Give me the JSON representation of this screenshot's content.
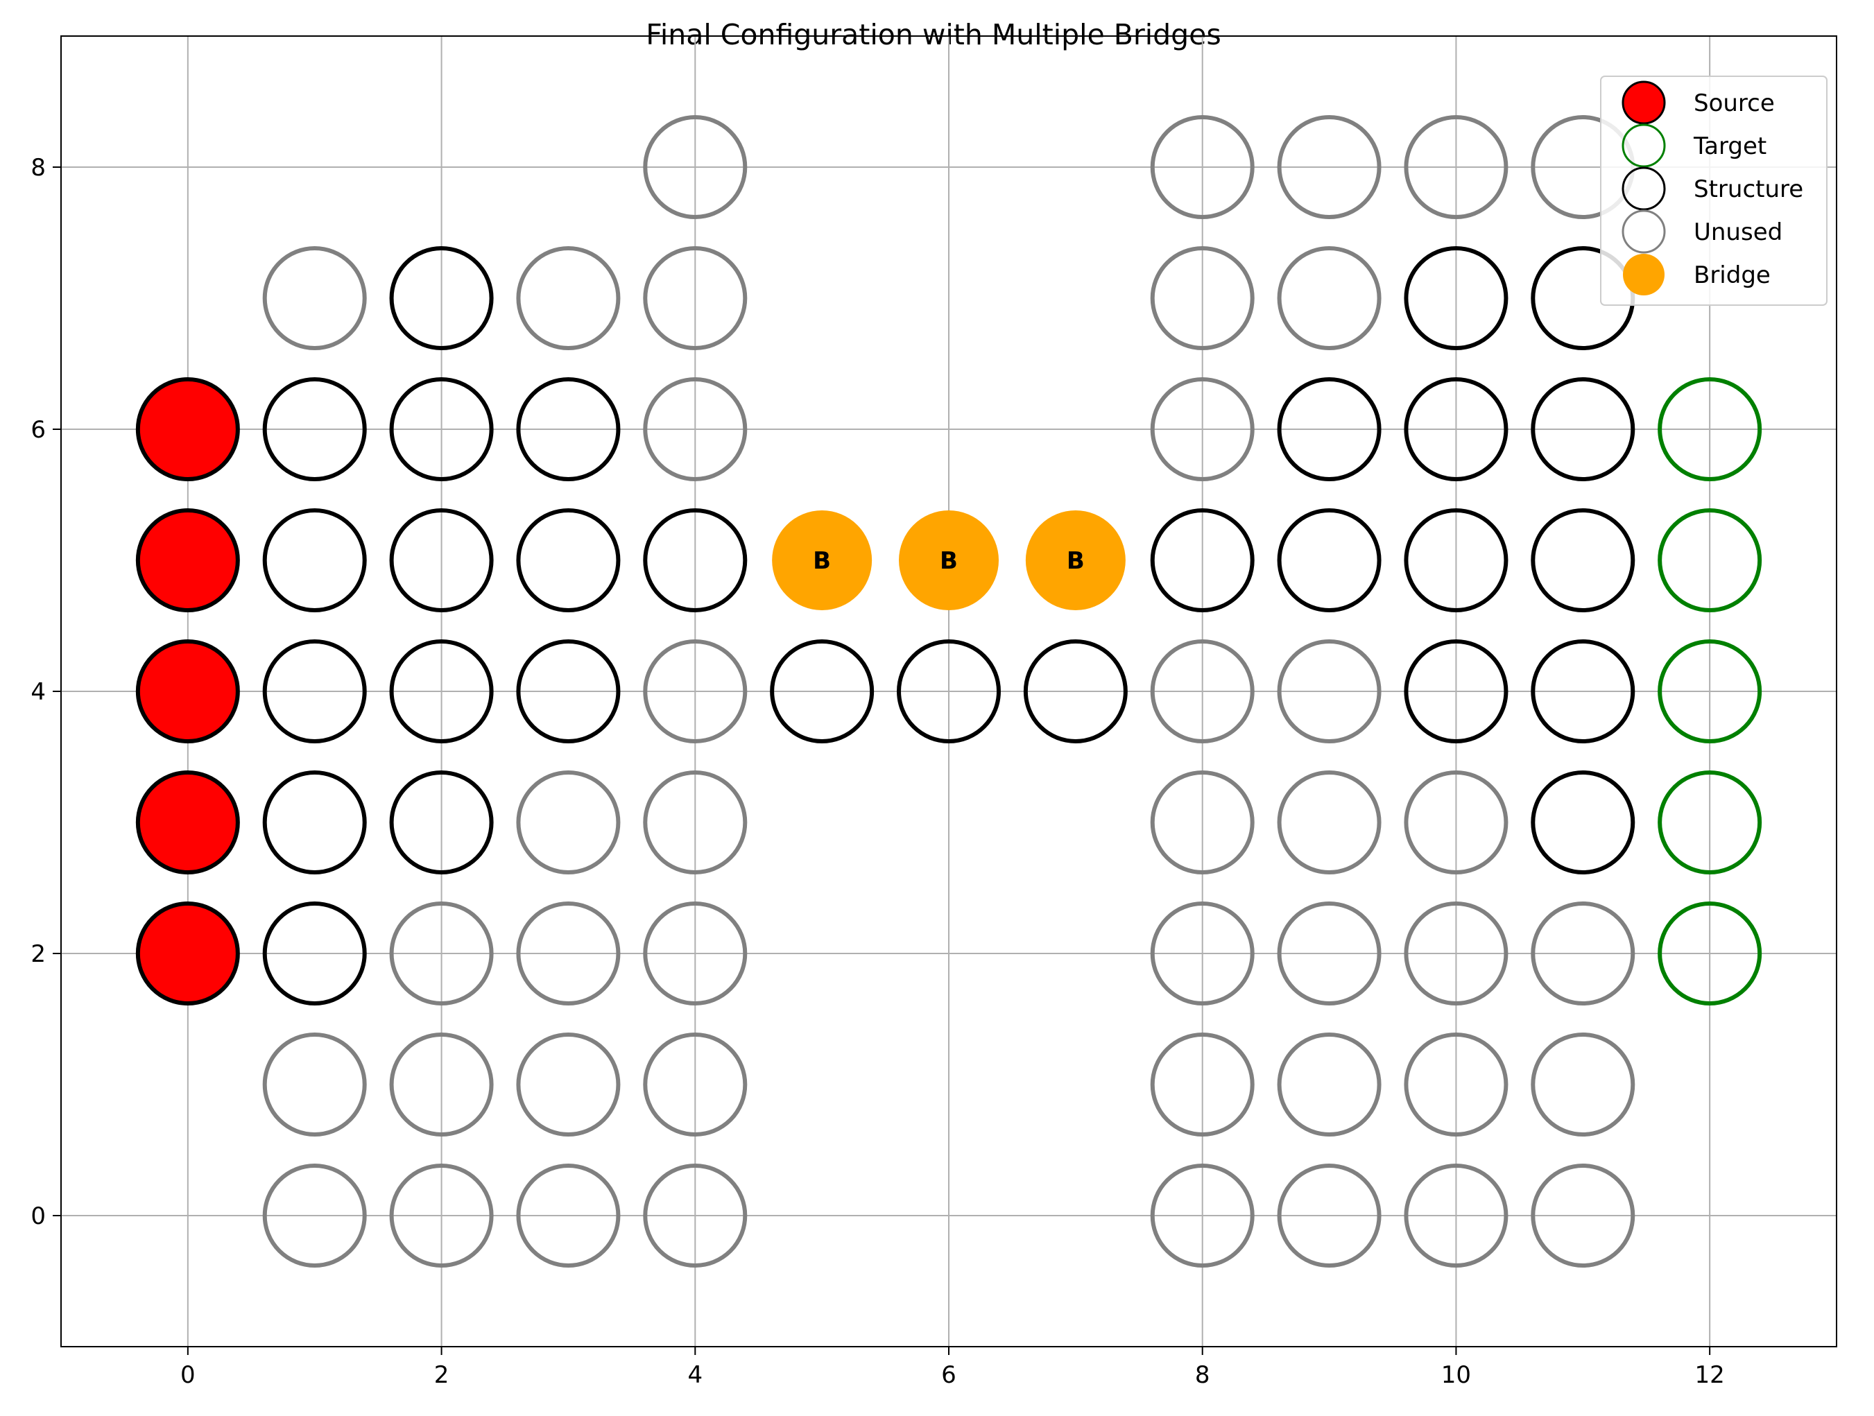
{
  "chart_data": {
    "type": "scatter",
    "title": "Final Configuration with Multiple Bridges",
    "xlabel": "",
    "ylabel": "",
    "xlim": [
      -1,
      13
    ],
    "ylim": [
      -1,
      9
    ],
    "xticks": [
      0,
      2,
      4,
      6,
      8,
      10,
      12
    ],
    "yticks": [
      0,
      2,
      4,
      6,
      8
    ],
    "grid": true,
    "legend_position": "top-right",
    "legend": [
      {
        "key": "source",
        "label": "Source"
      },
      {
        "key": "target",
        "label": "Target"
      },
      {
        "key": "structure",
        "label": "Structure"
      },
      {
        "key": "unused",
        "label": "Unused"
      },
      {
        "key": "bridge",
        "label": "Bridge"
      }
    ],
    "colors": {
      "source_fill": "#ff0000",
      "source_edge": "#000000",
      "target_edge": "#008000",
      "structure_edge": "#000000",
      "unused_edge": "#808080",
      "bridge_fill": "#ffa500",
      "grid": "#b0b0b0",
      "axes": "#000000"
    },
    "bridge_marker_text": "B",
    "series": [
      {
        "key": "unused",
        "points": [
          [
            1,
            0
          ],
          [
            2,
            0
          ],
          [
            3,
            0
          ],
          [
            4,
            0
          ],
          [
            1,
            1
          ],
          [
            2,
            1
          ],
          [
            3,
            1
          ],
          [
            4,
            1
          ],
          [
            2,
            2
          ],
          [
            3,
            2
          ],
          [
            4,
            2
          ],
          [
            3,
            3
          ],
          [
            4,
            3
          ],
          [
            4,
            4
          ],
          [
            4,
            6
          ],
          [
            1,
            7
          ],
          [
            3,
            7
          ],
          [
            4,
            7
          ],
          [
            4,
            8
          ],
          [
            8,
            0
          ],
          [
            9,
            0
          ],
          [
            10,
            0
          ],
          [
            11,
            0
          ],
          [
            8,
            1
          ],
          [
            9,
            1
          ],
          [
            10,
            1
          ],
          [
            11,
            1
          ],
          [
            8,
            2
          ],
          [
            9,
            2
          ],
          [
            10,
            2
          ],
          [
            11,
            2
          ],
          [
            8,
            3
          ],
          [
            9,
            3
          ],
          [
            10,
            3
          ],
          [
            8,
            4
          ],
          [
            9,
            4
          ],
          [
            8,
            6
          ],
          [
            8,
            7
          ],
          [
            9,
            7
          ],
          [
            8,
            8
          ],
          [
            9,
            8
          ],
          [
            10,
            8
          ],
          [
            11,
            8
          ]
        ]
      },
      {
        "key": "structure",
        "points": [
          [
            1,
            2
          ],
          [
            1,
            3
          ],
          [
            2,
            3
          ],
          [
            1,
            4
          ],
          [
            2,
            4
          ],
          [
            3,
            4
          ],
          [
            1,
            5
          ],
          [
            2,
            5
          ],
          [
            3,
            5
          ],
          [
            4,
            5
          ],
          [
            1,
            6
          ],
          [
            2,
            6
          ],
          [
            3,
            6
          ],
          [
            2,
            7
          ],
          [
            5,
            4
          ],
          [
            6,
            4
          ],
          [
            7,
            4
          ],
          [
            8,
            5
          ],
          [
            9,
            5
          ],
          [
            10,
            5
          ],
          [
            11,
            5
          ],
          [
            10,
            4
          ],
          [
            11,
            4
          ],
          [
            11,
            3
          ],
          [
            9,
            6
          ],
          [
            10,
            6
          ],
          [
            11,
            6
          ],
          [
            10,
            7
          ],
          [
            11,
            7
          ]
        ]
      },
      {
        "key": "source",
        "points": [
          [
            0,
            2
          ],
          [
            0,
            3
          ],
          [
            0,
            4
          ],
          [
            0,
            5
          ],
          [
            0,
            6
          ]
        ]
      },
      {
        "key": "target",
        "points": [
          [
            12,
            2
          ],
          [
            12,
            3
          ],
          [
            12,
            4
          ],
          [
            12,
            5
          ],
          [
            12,
            6
          ]
        ]
      },
      {
        "key": "bridge",
        "points": [
          [
            5,
            5
          ],
          [
            6,
            5
          ],
          [
            7,
            5
          ]
        ]
      }
    ]
  }
}
